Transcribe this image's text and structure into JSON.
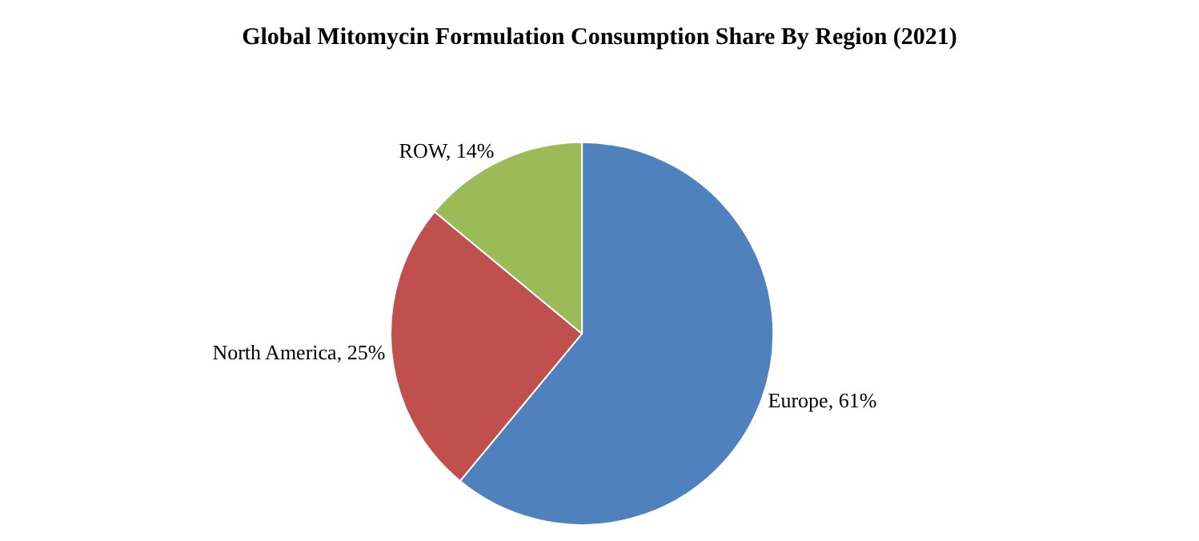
{
  "chart_data": {
    "type": "pie",
    "title": "Global Mitomycin Formulation Consumption Share By Region (2021)",
    "categories": [
      "Europe",
      "North America",
      "ROW"
    ],
    "values": [
      61,
      25,
      14
    ],
    "colors": [
      "#4f81bd",
      "#c0504d",
      "#9bbb59"
    ],
    "value_labels": [
      "61%",
      "25%",
      "14%"
    ],
    "legend": false
  }
}
